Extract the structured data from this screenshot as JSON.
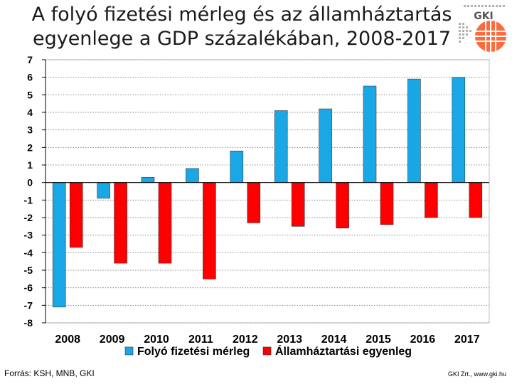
{
  "title_line1": "A folyó fizetési mérleg és az államháztartás",
  "title_line2": "egyenlege a GDP százalékában, 2008-2017",
  "logo": {
    "text": "GKI",
    "icon": "gki-logo-icon"
  },
  "source": "Forrás: KSH, MNB, GKI",
  "copyright": "GKI Zrt., www.gki.hu",
  "colors": {
    "current_account": "#1aa7e6",
    "budget": "#ff0000",
    "grid": "#8c8c8c",
    "logo": "#ff6a3d"
  },
  "chart_data": {
    "type": "bar",
    "categories": [
      "2008",
      "2009",
      "2010",
      "2011",
      "2012",
      "2013",
      "2014",
      "2015",
      "2016",
      "2017"
    ],
    "series": [
      {
        "name": "Folyó fizetési mérleg",
        "values": [
          -7.1,
          -0.9,
          0.3,
          0.8,
          1.8,
          4.1,
          4.2,
          5.5,
          5.9,
          6.0
        ]
      },
      {
        "name": "Államháztartási egyenleg",
        "values": [
          -3.7,
          -4.6,
          -4.6,
          -5.5,
          -2.3,
          -2.5,
          -2.6,
          -2.4,
          -2.0,
          -2.0
        ]
      }
    ],
    "title": "A folyó fizetési mérleg és az államháztartás egyenlege a GDP százalékában, 2008-2017",
    "xlabel": "",
    "ylabel": "",
    "ylim": [
      -8,
      7
    ],
    "yticks": [
      "7",
      "6",
      "5",
      "4",
      "3",
      "2",
      "1",
      "0",
      "-1",
      "-2",
      "-3",
      "-4",
      "-5",
      "-6",
      "-7",
      "-8"
    ],
    "grid": true,
    "legend_position": "bottom"
  }
}
